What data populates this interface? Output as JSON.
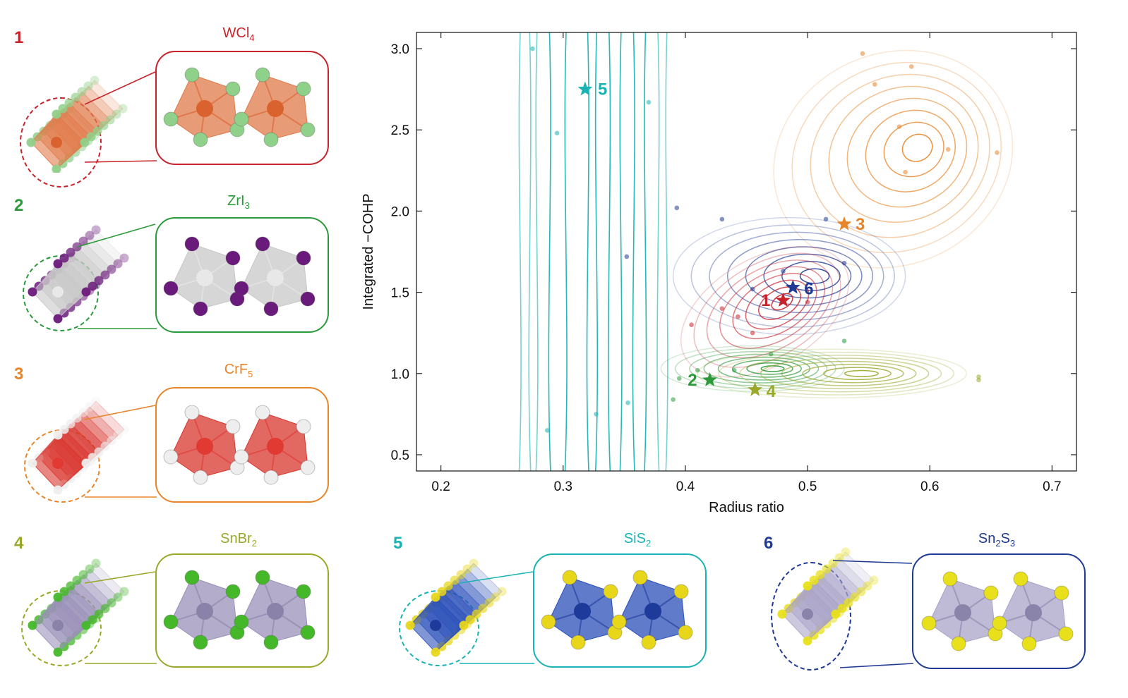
{
  "chart_data": {
    "type": "scatter",
    "xlabel": "Radius ratio",
    "ylabel": "Integrated −COHP",
    "xlim": [
      0.18,
      0.72
    ],
    "ylim": [
      0.4,
      3.1
    ],
    "xticks": [
      "0.2",
      "0.3",
      "0.4",
      "0.5",
      "0.6",
      "0.7"
    ],
    "yticks": [
      "0.5",
      "1.0",
      "1.5",
      "2.0",
      "2.5",
      "3.0"
    ],
    "grid": false,
    "clusters": [
      {
        "label": "5",
        "color": "#1ab3b3",
        "kind": "band",
        "x": [
          0.265,
          0.39
        ]
      },
      {
        "label": "3",
        "color": "#e8852a",
        "cx": 0.57,
        "cy": 2.32,
        "rx": 0.1,
        "ry": 0.65,
        "rot": -25
      },
      {
        "label": "6",
        "color": "#1f3a93",
        "cx": 0.485,
        "cy": 1.6,
        "rx": 0.095,
        "ry": 0.36,
        "rot": 0
      },
      {
        "label": "1",
        "color": "#c8222a",
        "cx": 0.465,
        "cy": 1.38,
        "rx": 0.075,
        "ry": 0.33,
        "rot": -30
      },
      {
        "label": "2",
        "color": "#2a9a3a",
        "cx": 0.455,
        "cy": 1.03,
        "rx": 0.075,
        "ry": 0.14,
        "rot": 0
      },
      {
        "label": "4",
        "color": "#9aa82a",
        "cx": 0.52,
        "cy": 1.0,
        "rx": 0.11,
        "ry": 0.15,
        "rot": 0
      }
    ],
    "markers": [
      {
        "label": "5",
        "x": 0.318,
        "y": 2.75,
        "color": "#1ab3b3"
      },
      {
        "label": "3",
        "x": 0.53,
        "y": 1.92,
        "color": "#e8852a"
      },
      {
        "label": "6",
        "x": 0.488,
        "y": 1.53,
        "color": "#1f3a93"
      },
      {
        "label": "1",
        "x": 0.48,
        "y": 1.45,
        "color": "#c8222a"
      },
      {
        "label": "2",
        "x": 0.42,
        "y": 0.96,
        "color": "#2a9a3a"
      },
      {
        "label": "4",
        "x": 0.457,
        "y": 0.9,
        "color": "#9aa82a"
      }
    ],
    "points": [
      {
        "x": 0.275,
        "y": 3.0,
        "c": "#1ab3b3"
      },
      {
        "x": 0.295,
        "y": 2.48,
        "c": "#1ab3b3"
      },
      {
        "x": 0.287,
        "y": 0.65,
        "c": "#1ab3b3"
      },
      {
        "x": 0.327,
        "y": 0.75,
        "c": "#1ab3b3"
      },
      {
        "x": 0.353,
        "y": 0.82,
        "c": "#1ab3b3"
      },
      {
        "x": 0.37,
        "y": 2.67,
        "c": "#1ab3b3"
      },
      {
        "x": 0.352,
        "y": 1.72,
        "c": "#1f3a93"
      },
      {
        "x": 0.545,
        "y": 2.97,
        "c": "#e8852a"
      },
      {
        "x": 0.585,
        "y": 2.89,
        "c": "#e8852a"
      },
      {
        "x": 0.555,
        "y": 2.78,
        "c": "#e8852a"
      },
      {
        "x": 0.575,
        "y": 2.52,
        "c": "#e8852a"
      },
      {
        "x": 0.615,
        "y": 2.38,
        "c": "#e8852a"
      },
      {
        "x": 0.58,
        "y": 2.24,
        "c": "#e8852a"
      },
      {
        "x": 0.655,
        "y": 2.36,
        "c": "#e8852a"
      },
      {
        "x": 0.393,
        "y": 2.02,
        "c": "#1f3a93"
      },
      {
        "x": 0.43,
        "y": 1.95,
        "c": "#1f3a93"
      },
      {
        "x": 0.515,
        "y": 1.95,
        "c": "#1f3a93"
      },
      {
        "x": 0.53,
        "y": 1.68,
        "c": "#1f3a93"
      },
      {
        "x": 0.48,
        "y": 1.63,
        "c": "#1f3a93"
      },
      {
        "x": 0.455,
        "y": 1.52,
        "c": "#1f3a93"
      },
      {
        "x": 0.43,
        "y": 1.4,
        "c": "#c8222a"
      },
      {
        "x": 0.405,
        "y": 1.3,
        "c": "#c8222a"
      },
      {
        "x": 0.443,
        "y": 1.35,
        "c": "#c8222a"
      },
      {
        "x": 0.455,
        "y": 1.25,
        "c": "#c8222a"
      },
      {
        "x": 0.5,
        "y": 1.44,
        "c": "#c8222a"
      },
      {
        "x": 0.53,
        "y": 1.2,
        "c": "#2a9a3a"
      },
      {
        "x": 0.47,
        "y": 1.12,
        "c": "#2a9a3a"
      },
      {
        "x": 0.41,
        "y": 1.02,
        "c": "#2a9a3a"
      },
      {
        "x": 0.395,
        "y": 0.97,
        "c": "#2a9a3a"
      },
      {
        "x": 0.39,
        "y": 0.84,
        "c": "#2a9a3a"
      },
      {
        "x": 0.44,
        "y": 1.02,
        "c": "#2a9a3a"
      },
      {
        "x": 0.64,
        "y": 0.98,
        "c": "#9aa82a"
      },
      {
        "x": 0.64,
        "y": 0.96,
        "c": "#9aa82a"
      }
    ]
  },
  "panels": [
    {
      "num": "1",
      "formula": "WCl",
      "sub": "4",
      "color": "#c8222a"
    },
    {
      "num": "2",
      "formula": "ZrI",
      "sub": "3",
      "color": "#2a9a3a"
    },
    {
      "num": "3",
      "formula": "CrF",
      "sub": "5",
      "color": "#e8852a"
    },
    {
      "num": "4",
      "formula": "SnBr",
      "sub": "2",
      "color": "#9aa82a"
    },
    {
      "num": "5",
      "formula": "SiS",
      "sub": "2",
      "color": "#1ab3b3"
    },
    {
      "num": "6",
      "formula": "Sn",
      "sub": "2",
      "formula2": "S",
      "sub2": "3",
      "color": "#1f3a93"
    }
  ],
  "atom_colors": {
    "wcl4": {
      "poly": "#e07a4a",
      "metal": "#d9622e",
      "anion": "#8fd08a"
    },
    "zri3": {
      "poly": "#c8c8c8",
      "metal": "#e8e8e8",
      "anion": "#6a1a7a"
    },
    "crf5": {
      "poly": "#d8352e",
      "metal": "#e03a32",
      "anion": "#eeeeee"
    },
    "snbr2": {
      "poly": "#9a90b8",
      "metal": "#8a82a8",
      "anion": "#45b82a"
    },
    "sis2": {
      "poly": "#2a4fb8",
      "metal": "#1e3a9a",
      "anion": "#e8d61a"
    },
    "sn2s3": {
      "poly": "#a9a3c8",
      "metal": "#8a84aa",
      "anion": "#e8e01a"
    }
  }
}
